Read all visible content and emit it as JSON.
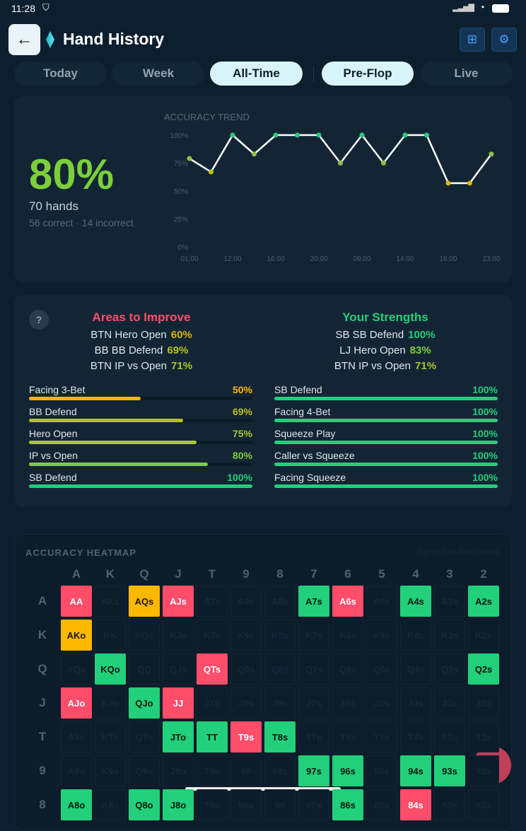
{
  "status_bar": {
    "time": "11:28"
  },
  "header": {
    "title": "Hand History",
    "back_icon": "arrow-left-icon",
    "grid_icon": "grid-icon",
    "settings_icon": "gear-icon"
  },
  "tabs": [
    {
      "label": "Today",
      "active": false
    },
    {
      "label": "Week",
      "active": false
    },
    {
      "label": "All-Time",
      "active": true
    },
    {
      "label": "Pre-Flop",
      "active": true
    },
    {
      "label": "Live",
      "active": false
    }
  ],
  "summary": {
    "accuracy": "80%",
    "hands": "70 hands",
    "breakdown": "56 correct · 14 incorrect"
  },
  "chart_data": {
    "type": "line",
    "title": "ACCURACY TREND",
    "x": [
      "01:00",
      "",
      "12:00",
      "",
      "16:00",
      "",
      "20:00",
      "",
      "09:00",
      "",
      "14:00",
      "",
      "16:00",
      "",
      "23:00"
    ],
    "values": [
      79,
      67,
      100,
      83,
      100,
      100,
      100,
      75,
      100,
      75,
      100,
      100,
      57,
      57,
      83
    ],
    "ylim": [
      0,
      100
    ],
    "yticks": [
      "100%",
      "75%",
      "50%",
      "25%",
      "0%"
    ],
    "xtick_labels": [
      "01:00",
      "12:00",
      "16:00",
      "20:00",
      "09:00",
      "14:00",
      "16:00",
      "23:00"
    ],
    "grid": false,
    "line_color": "#ffffff",
    "point_colors": {
      "high": "#22cf7a",
      "mid": "#8bc34a",
      "low_mid": "#b5c21c",
      "low": "#e0b400"
    }
  },
  "improve": {
    "title": "Areas to Improve",
    "items": [
      {
        "label": "BTN Hero Open",
        "value": "60%",
        "color": "#d8b400"
      },
      {
        "label": "BB BB Defend",
        "value": "69%",
        "color": "#b5c21c"
      },
      {
        "label": "BTN IP vs Open",
        "value": "71%",
        "color": "#a8c72a"
      }
    ],
    "bars": [
      {
        "label": "Facing 3-Bet",
        "value": "50%",
        "pct": 50,
        "color": "#ffb800"
      },
      {
        "label": "BB Defend",
        "value": "69%",
        "pct": 69,
        "color": "#b5c21c"
      },
      {
        "label": "Hero Open",
        "value": "75%",
        "pct": 75,
        "color": "#a8c72a"
      },
      {
        "label": "IP vs Open",
        "value": "80%",
        "pct": 80,
        "color": "#7ccf3b"
      },
      {
        "label": "SB Defend",
        "value": "100%",
        "pct": 100,
        "color": "#22cf7a"
      }
    ]
  },
  "strengths": {
    "title": "Your Strengths",
    "items": [
      {
        "label": "SB SB Defend",
        "value": "100%",
        "color": "#22cf7a"
      },
      {
        "label": "LJ Hero Open",
        "value": "83%",
        "color": "#7ccf3b"
      },
      {
        "label": "BTN IP vs Open",
        "value": "71%",
        "color": "#a8c72a"
      }
    ],
    "bars": [
      {
        "label": "SB Defend",
        "value": "100%",
        "pct": 100,
        "color": "#22cf7a"
      },
      {
        "label": "Facing 4-Bet",
        "value": "100%",
        "pct": 100,
        "color": "#22cf7a"
      },
      {
        "label": "Squeeze Play",
        "value": "100%",
        "pct": 100,
        "color": "#22cf7a"
      },
      {
        "label": "Caller vs Squeeze",
        "value": "100%",
        "pct": 100,
        "color": "#22cf7a"
      },
      {
        "label": "Facing Squeeze",
        "value": "100%",
        "pct": 100,
        "color": "#22cf7a"
      }
    ]
  },
  "help_label": "?",
  "heatmap": {
    "title": "ACCURACY HEATMAP",
    "hint": "Tap cell to filter hands",
    "columns": [
      "A",
      "K",
      "Q",
      "J",
      "T",
      "9",
      "8",
      "7",
      "6",
      "5",
      "4",
      "3",
      "2"
    ],
    "rows": [
      "A",
      "K",
      "Q",
      "J",
      "T",
      "9",
      "8"
    ],
    "cells": [
      [
        "AA",
        "AKs",
        "AQs",
        "AJs",
        "ATs",
        "A9s",
        "A8s",
        "A7s",
        "A6s",
        "A5s",
        "A4s",
        "A3s",
        "A2s"
      ],
      [
        "AKo",
        "KK",
        "KQs",
        "KJs",
        "KTs",
        "K9s",
        "K8s",
        "K7s",
        "K6s",
        "K5s",
        "K4s",
        "K3s",
        "K2s"
      ],
      [
        "AQo",
        "KQo",
        "QQ",
        "QJs",
        "QTs",
        "Q9s",
        "Q8s",
        "Q7s",
        "Q6s",
        "Q5s",
        "Q4s",
        "Q3s",
        "Q2s"
      ],
      [
        "AJo",
        "KJo",
        "QJo",
        "JJ",
        "JTs",
        "J9s",
        "J8s",
        "J7s",
        "J6s",
        "J5s",
        "J4s",
        "J3s",
        "J2s"
      ],
      [
        "ATo",
        "KTo",
        "QTo",
        "JTo",
        "TT",
        "T9s",
        "T8s",
        "T7s",
        "T6s",
        "T5s",
        "T4s",
        "T3s",
        "T2s"
      ],
      [
        "A9o",
        "K9o",
        "Q9o",
        "J9o",
        "T9o",
        "99",
        "98s",
        "97s",
        "96s",
        "95s",
        "94s",
        "93s",
        "92s"
      ],
      [
        "A8o",
        "K8o",
        "Q8o",
        "J8o",
        "T8o",
        "98o",
        "88",
        "87s",
        "86s",
        "85s",
        "84s",
        "83s",
        "82s"
      ]
    ],
    "status": [
      [
        "r",
        "",
        "y",
        "r",
        "",
        "",
        "",
        "g",
        "r",
        "",
        "g",
        "",
        "g"
      ],
      [
        "y",
        "",
        "",
        "",
        "",
        "",
        "",
        "",
        "",
        "",
        "",
        "",
        ""
      ],
      [
        "",
        "g",
        "",
        "",
        "r",
        "",
        "",
        "",
        "",
        "",
        "",
        "",
        "g"
      ],
      [
        "r",
        "",
        "g",
        "r",
        "",
        "",
        "",
        "",
        "",
        "",
        "",
        "",
        ""
      ],
      [
        "",
        "",
        "",
        "g",
        "g",
        "r",
        "g",
        "",
        "",
        "",
        "",
        "",
        ""
      ],
      [
        "",
        "",
        "",
        "",
        "",
        "",
        "",
        "g",
        "g",
        "",
        "g",
        "g",
        ""
      ],
      [
        "g",
        "",
        "g",
        "g",
        "",
        "",
        "",
        "",
        "g",
        "",
        "r",
        "",
        ""
      ]
    ]
  },
  "fab": {
    "label": "!"
  }
}
